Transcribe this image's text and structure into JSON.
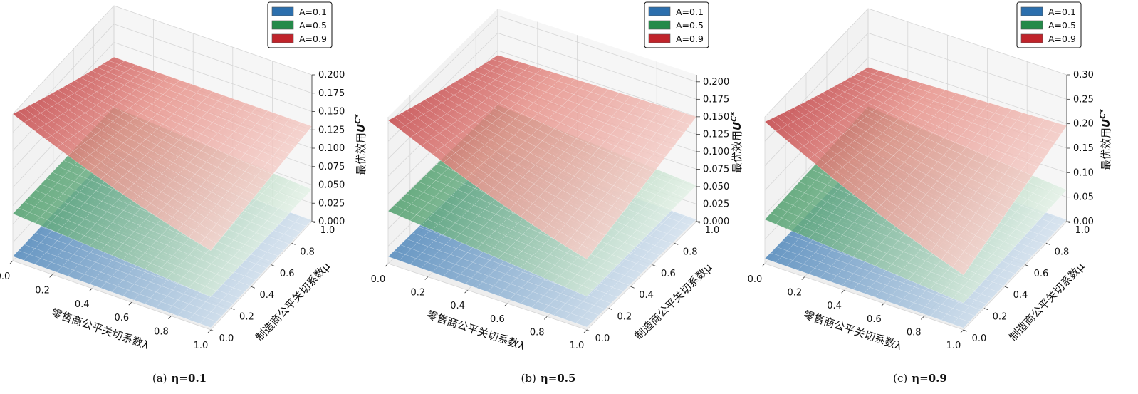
{
  "chart_data": [
    {
      "type": "surface3d",
      "caption_prefix": "(a)",
      "caption_eta": "η=0.1",
      "xlabel": "零售商公平关切系数λ",
      "ylabel": "制造商公平关切系数μ",
      "zlabel": "最优效用",
      "zlabel_symbol": "U",
      "zlabel_sup": "C*",
      "x_ticks": [
        "0.0",
        "0.2",
        "0.4",
        "0.6",
        "0.8",
        "1.0"
      ],
      "y_ticks": [
        "0.0",
        "0.2",
        "0.4",
        "0.6",
        "0.8",
        "1.0"
      ],
      "z_ticks": [
        "0.000",
        "0.025",
        "0.050",
        "0.075",
        "0.100",
        "0.125",
        "0.150",
        "0.175",
        "0.200"
      ],
      "zlim": [
        0,
        0.2
      ],
      "legend": [
        "A=0.1",
        "A=0.5",
        "A=0.9"
      ],
      "series": [
        {
          "name": "A=0.1",
          "corners": {
            "x0y0": 0.006,
            "x1y0": 0.003,
            "x0y1": 0.004,
            "x1y1": 0.002
          }
        },
        {
          "name": "A=0.5",
          "corners": {
            "x0y0": 0.064,
            "x1y0": 0.045,
            "x0y1": 0.062,
            "x1y1": 0.044
          }
        },
        {
          "name": "A=0.9",
          "corners": {
            "x0y0": 0.2,
            "x1y0": 0.108,
            "x0y1": 0.122,
            "x1y1": 0.13
          }
        }
      ]
    },
    {
      "type": "surface3d",
      "caption_prefix": "(b)",
      "caption_eta": "η=0.5",
      "xlabel": "零售商公平关切系数λ",
      "ylabel": "制造商公平关切系数μ",
      "zlabel": "最优效用",
      "zlabel_symbol": "U",
      "zlabel_sup": "C*",
      "x_ticks": [
        "0.0",
        "0.2",
        "0.4",
        "0.6",
        "0.8",
        "1.0"
      ],
      "y_ticks": [
        "0.0",
        "0.2",
        "0.4",
        "0.6",
        "0.8",
        "1.0"
      ],
      "z_ticks": [
        "0.000",
        "0.025",
        "0.050",
        "0.075",
        "0.100",
        "0.125",
        "0.150",
        "0.175",
        "0.200"
      ],
      "zlim": [
        0,
        0.21
      ],
      "legend": [
        "A=0.1",
        "A=0.5",
        "A=0.9"
      ],
      "series": [
        {
          "name": "A=0.1",
          "corners": {
            "x0y0": 0.01,
            "x1y0": 0.004,
            "x0y1": 0.008,
            "x1y1": 0.003
          }
        },
        {
          "name": "A=0.5",
          "corners": {
            "x0y0": 0.075,
            "x1y0": 0.048,
            "x0y1": 0.072,
            "x1y1": 0.052
          }
        },
        {
          "name": "A=0.9",
          "corners": {
            "x0y0": 0.205,
            "x1y0": 0.101,
            "x0y1": 0.135,
            "x1y1": 0.15
          }
        }
      ]
    },
    {
      "type": "surface3d",
      "caption_prefix": "(c)",
      "caption_eta": "η=0.9",
      "xlabel": "零售商公平关切系数λ",
      "ylabel": "制造商公平关切系数μ",
      "zlabel": "最优效用",
      "zlabel_symbol": "U",
      "zlabel_sup": "C*",
      "x_ticks": [
        "0.0",
        "0.2",
        "0.4",
        "0.6",
        "0.8",
        "1.0"
      ],
      "y_ticks": [
        "0.0",
        "0.2",
        "0.4",
        "0.6",
        "0.8",
        "1.0"
      ],
      "z_ticks": [
        "0.00",
        "0.05",
        "0.10",
        "0.15",
        "0.20",
        "0.25",
        "0.30"
      ],
      "zlim": [
        0,
        0.3
      ],
      "legend": [
        "A=0.1",
        "A=0.5",
        "A=0.9"
      ],
      "series": [
        {
          "name": "A=0.1",
          "corners": {
            "x0y0": 0.01,
            "x1y0": 0.004,
            "x0y1": 0.008,
            "x1y1": 0.004
          }
        },
        {
          "name": "A=0.5",
          "corners": {
            "x0y0": 0.09,
            "x1y0": 0.055,
            "x0y1": 0.1,
            "x1y1": 0.065
          }
        },
        {
          "name": "A=0.9",
          "corners": {
            "x0y0": 0.29,
            "x1y0": 0.112,
            "x0y1": 0.168,
            "x1y1": 0.196
          }
        }
      ]
    }
  ],
  "colors": {
    "series": [
      "#2c6fad",
      "#258a4a",
      "#c0242b"
    ],
    "pane": "#f2f2f2",
    "grid": "#d6d6d6"
  }
}
